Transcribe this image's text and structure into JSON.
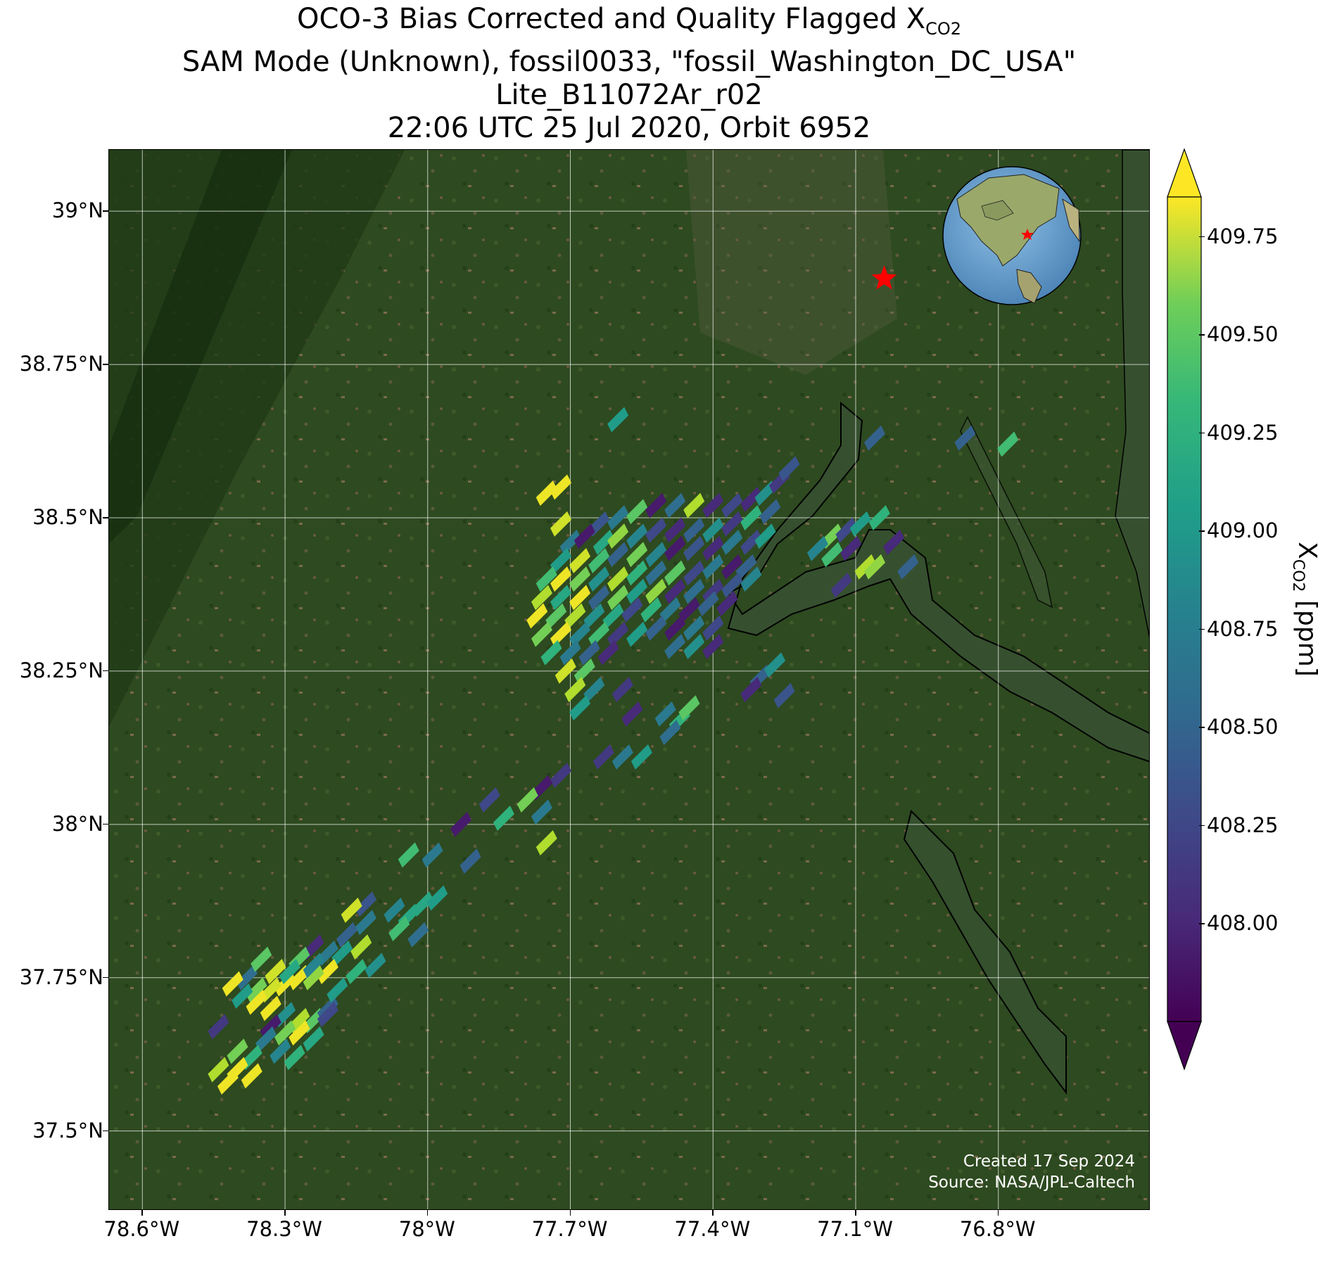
{
  "title": {
    "line1_prefix": "OCO-3 Bias Corrected and Quality Flagged X",
    "line1_sub": "CO2",
    "line2": "SAM Mode (Unknown), fossil0033, \"fossil_Washington_DC_USA\"",
    "line3": "Lite_B11072Ar_r02",
    "line4": "22:06 UTC 25 Jul 2020, Orbit 6952"
  },
  "credits": {
    "created": "Created 17 Sep 2024",
    "source": "Source: NASA/JPL-Caltech"
  },
  "map": {
    "lon_range": [
      -78.67,
      -76.48
    ],
    "lat_range": [
      37.37,
      39.1
    ],
    "lon_ticks": [
      {
        "value": -78.6,
        "label": "78.6°W"
      },
      {
        "value": -78.3,
        "label": "78.3°W"
      },
      {
        "value": -78.0,
        "label": "78°W"
      },
      {
        "value": -77.7,
        "label": "77.7°W"
      },
      {
        "value": -77.4,
        "label": "77.4°W"
      },
      {
        "value": -77.1,
        "label": "77.1°W"
      },
      {
        "value": -76.8,
        "label": "76.8°W"
      }
    ],
    "lat_ticks": [
      {
        "value": 39.0,
        "label": "39°N"
      },
      {
        "value": 38.75,
        "label": "38.75°N"
      },
      {
        "value": 38.5,
        "label": "38.5°N"
      },
      {
        "value": 38.25,
        "label": "38.25°N"
      },
      {
        "value": 38.0,
        "label": "38°N"
      },
      {
        "value": 37.75,
        "label": "37.75°N"
      },
      {
        "value": 37.5,
        "label": "37.5°N"
      }
    ],
    "target_marker": {
      "name": "fossil_Washington_DC_USA",
      "lon": -77.04,
      "lat": 38.89,
      "color": "#ff0000"
    },
    "colors": {
      "land": "#2f4a1f",
      "water": "#314a2e",
      "gridline": "#ffffff",
      "coastline": "#000000"
    }
  },
  "chart_data": {
    "type": "heatmap",
    "variable": "XCO2",
    "units": "ppm",
    "colorbar": {
      "label_prefix": "X",
      "label_sub": "CO2",
      "label_suffix": " [ppm]",
      "range": [
        407.75,
        409.85
      ],
      "extend": "both",
      "colormap": "viridis",
      "ticks": [
        {
          "value": 408.0,
          "label": "408.00"
        },
        {
          "value": 408.25,
          "label": "408.25"
        },
        {
          "value": 408.5,
          "label": "408.50"
        },
        {
          "value": 408.75,
          "label": "408.75"
        },
        {
          "value": 409.0,
          "label": "409.00"
        },
        {
          "value": 409.25,
          "label": "409.25"
        },
        {
          "value": 409.5,
          "label": "409.50"
        },
        {
          "value": 409.75,
          "label": "409.75"
        }
      ]
    },
    "soundings": [
      [
        -77.6,
        38.66,
        408.9
      ],
      [
        -77.06,
        38.63,
        408.4
      ],
      [
        -76.87,
        38.63,
        408.4
      ],
      [
        -76.78,
        38.62,
        409.2
      ],
      [
        -77.72,
        38.55,
        409.8
      ],
      [
        -77.75,
        38.54,
        409.8
      ],
      [
        -77.72,
        38.49,
        409.7
      ],
      [
        -77.64,
        38.49,
        408.3
      ],
      [
        -77.6,
        38.5,
        408.6
      ],
      [
        -77.56,
        38.51,
        409.3
      ],
      [
        -77.52,
        38.52,
        407.9
      ],
      [
        -77.48,
        38.52,
        408.5
      ],
      [
        -77.44,
        38.52,
        409.6
      ],
      [
        -77.4,
        38.52,
        408.0
      ],
      [
        -77.36,
        38.52,
        408.2
      ],
      [
        -77.32,
        38.53,
        408.0
      ],
      [
        -77.29,
        38.54,
        408.8
      ],
      [
        -77.26,
        38.56,
        408.1
      ],
      [
        -77.24,
        38.58,
        408.3
      ],
      [
        -77.7,
        38.46,
        408.6
      ],
      [
        -77.67,
        38.47,
        407.9
      ],
      [
        -77.63,
        38.46,
        409.0
      ],
      [
        -77.6,
        38.47,
        409.5
      ],
      [
        -77.56,
        38.47,
        408.7
      ],
      [
        -77.52,
        38.48,
        408.2
      ],
      [
        -77.48,
        38.48,
        408.0
      ],
      [
        -77.44,
        38.48,
        408.4
      ],
      [
        -77.4,
        38.48,
        408.8
      ],
      [
        -77.36,
        38.49,
        408.1
      ],
      [
        -77.32,
        38.5,
        409.1
      ],
      [
        -77.28,
        38.51,
        408.4
      ],
      [
        -77.72,
        38.43,
        408.9
      ],
      [
        -77.68,
        38.43,
        409.7
      ],
      [
        -77.64,
        38.43,
        409.2
      ],
      [
        -77.6,
        38.44,
        408.4
      ],
      [
        -77.56,
        38.44,
        409.4
      ],
      [
        -77.52,
        38.44,
        408.7
      ],
      [
        -77.48,
        38.45,
        407.9
      ],
      [
        -77.44,
        38.45,
        408.3
      ],
      [
        -77.4,
        38.45,
        408.0
      ],
      [
        -77.36,
        38.46,
        408.6
      ],
      [
        -77.32,
        38.46,
        408.2
      ],
      [
        -77.29,
        38.47,
        408.9
      ],
      [
        -77.75,
        38.4,
        409.2
      ],
      [
        -77.72,
        38.4,
        409.8
      ],
      [
        -77.68,
        38.4,
        409.4
      ],
      [
        -77.64,
        38.4,
        408.8
      ],
      [
        -77.6,
        38.4,
        409.6
      ],
      [
        -77.56,
        38.41,
        409.1
      ],
      [
        -77.52,
        38.41,
        408.5
      ],
      [
        -77.48,
        38.41,
        409.3
      ],
      [
        -77.44,
        38.41,
        408.2
      ],
      [
        -77.4,
        38.42,
        408.6
      ],
      [
        -77.36,
        38.42,
        407.9
      ],
      [
        -77.33,
        38.42,
        408.4
      ],
      [
        -77.76,
        38.37,
        409.6
      ],
      [
        -77.72,
        38.37,
        409.0
      ],
      [
        -77.68,
        38.37,
        409.8
      ],
      [
        -77.64,
        38.37,
        408.4
      ],
      [
        -77.6,
        38.37,
        409.4
      ],
      [
        -77.56,
        38.38,
        408.9
      ],
      [
        -77.52,
        38.38,
        409.5
      ],
      [
        -77.48,
        38.38,
        408.0
      ],
      [
        -77.44,
        38.38,
        408.5
      ],
      [
        -77.4,
        38.38,
        408.1
      ],
      [
        -77.36,
        38.39,
        408.3
      ],
      [
        -77.32,
        38.4,
        408.7
      ],
      [
        -77.77,
        38.34,
        409.8
      ],
      [
        -77.73,
        38.34,
        409.3
      ],
      [
        -77.69,
        38.34,
        409.6
      ],
      [
        -77.65,
        38.34,
        408.8
      ],
      [
        -77.61,
        38.34,
        409.0
      ],
      [
        -77.57,
        38.35,
        408.2
      ],
      [
        -77.53,
        38.35,
        409.1
      ],
      [
        -77.49,
        38.35,
        408.6
      ],
      [
        -77.45,
        38.35,
        407.9
      ],
      [
        -77.41,
        38.36,
        408.4
      ],
      [
        -77.37,
        38.36,
        408.0
      ],
      [
        -77.76,
        38.31,
        409.4
      ],
      [
        -77.72,
        38.31,
        409.8
      ],
      [
        -77.68,
        38.31,
        408.7
      ],
      [
        -77.64,
        38.31,
        409.2
      ],
      [
        -77.6,
        38.31,
        408.1
      ],
      [
        -77.56,
        38.31,
        408.9
      ],
      [
        -77.52,
        38.32,
        408.4
      ],
      [
        -77.48,
        38.32,
        407.9
      ],
      [
        -77.44,
        38.32,
        408.6
      ],
      [
        -77.4,
        38.32,
        408.2
      ],
      [
        -77.74,
        38.28,
        409.1
      ],
      [
        -77.7,
        38.28,
        408.6
      ],
      [
        -77.66,
        38.28,
        408.4
      ],
      [
        -77.62,
        38.28,
        408.0
      ],
      [
        -77.48,
        38.29,
        408.5
      ],
      [
        -77.44,
        38.29,
        408.8
      ],
      [
        -77.4,
        38.29,
        408.0
      ],
      [
        -77.71,
        38.25,
        409.7
      ],
      [
        -77.67,
        38.25,
        409.3
      ],
      [
        -77.69,
        38.22,
        409.6
      ],
      [
        -77.65,
        38.22,
        408.7
      ],
      [
        -77.68,
        38.19,
        408.9
      ],
      [
        -77.59,
        38.22,
        408.1
      ],
      [
        -77.57,
        38.18,
        408.0
      ],
      [
        -77.3,
        38.24,
        408.4
      ],
      [
        -77.27,
        38.26,
        408.8
      ],
      [
        -77.32,
        38.22,
        408.0
      ],
      [
        -77.25,
        38.21,
        408.3
      ],
      [
        -77.5,
        38.18,
        408.6
      ],
      [
        -77.47,
        38.17,
        409.1
      ],
      [
        -77.45,
        38.19,
        409.3
      ],
      [
        -77.49,
        38.15,
        408.5
      ],
      [
        -77.63,
        38.11,
        408.1
      ],
      [
        -77.59,
        38.11,
        408.6
      ],
      [
        -77.55,
        38.11,
        408.9
      ],
      [
        -77.15,
        38.47,
        409.4
      ],
      [
        -77.12,
        38.48,
        408.2
      ],
      [
        -77.09,
        38.49,
        408.9
      ],
      [
        -77.05,
        38.5,
        409.1
      ],
      [
        -77.18,
        38.45,
        408.7
      ],
      [
        -77.15,
        38.44,
        409.2
      ],
      [
        -77.11,
        38.45,
        408.0
      ],
      [
        -77.08,
        38.42,
        409.6
      ],
      [
        -77.02,
        38.46,
        408.0
      ],
      [
        -77.13,
        38.39,
        408.1
      ],
      [
        -77.06,
        38.42,
        409.5
      ],
      [
        -76.99,
        38.42,
        408.4
      ],
      [
        -77.72,
        38.08,
        408.1
      ],
      [
        -77.76,
        38.06,
        407.9
      ],
      [
        -77.79,
        38.04,
        409.4
      ],
      [
        -77.84,
        38.01,
        409.1
      ],
      [
        -77.76,
        38.02,
        408.6
      ],
      [
        -77.87,
        38.04,
        408.2
      ],
      [
        -77.93,
        38.0,
        407.9
      ],
      [
        -77.75,
        37.97,
        409.6
      ],
      [
        -78.04,
        37.95,
        409.2
      ],
      [
        -77.99,
        37.95,
        408.6
      ],
      [
        -77.91,
        37.94,
        408.4
      ],
      [
        -78.07,
        37.86,
        408.7
      ],
      [
        -78.04,
        37.85,
        409.0
      ],
      [
        -78.01,
        37.87,
        409.0
      ],
      [
        -77.98,
        37.88,
        408.9
      ],
      [
        -78.06,
        37.83,
        409.2
      ],
      [
        -78.02,
        37.82,
        408.5
      ],
      [
        -78.13,
        37.87,
        408.3
      ],
      [
        -78.16,
        37.86,
        409.7
      ],
      [
        -78.13,
        37.84,
        408.6
      ],
      [
        -78.17,
        37.82,
        408.4
      ],
      [
        -78.14,
        37.8,
        409.6
      ],
      [
        -78.18,
        37.79,
        408.9
      ],
      [
        -78.21,
        37.79,
        408.6
      ],
      [
        -78.24,
        37.8,
        408.0
      ],
      [
        -78.27,
        37.78,
        409.3
      ],
      [
        -78.21,
        37.76,
        409.8
      ],
      [
        -78.24,
        37.75,
        409.5
      ],
      [
        -78.27,
        37.75,
        409.8
      ],
      [
        -78.3,
        37.74,
        409.8
      ],
      [
        -78.33,
        37.73,
        409.7
      ],
      [
        -78.36,
        37.73,
        409.4
      ],
      [
        -78.38,
        37.75,
        408.5
      ],
      [
        -78.41,
        37.74,
        409.8
      ],
      [
        -78.39,
        37.72,
        408.9
      ],
      [
        -78.36,
        37.71,
        409.8
      ],
      [
        -78.33,
        37.7,
        409.8
      ],
      [
        -78.3,
        37.69,
        408.8
      ],
      [
        -78.27,
        37.68,
        409.6
      ],
      [
        -78.24,
        37.68,
        409.3
      ],
      [
        -78.21,
        37.7,
        408.4
      ],
      [
        -78.33,
        37.67,
        407.9
      ],
      [
        -78.3,
        37.66,
        409.4
      ],
      [
        -78.27,
        37.66,
        409.8
      ],
      [
        -78.24,
        37.65,
        409.0
      ],
      [
        -78.31,
        37.63,
        408.7
      ],
      [
        -78.28,
        37.62,
        409.1
      ],
      [
        -78.34,
        37.65,
        408.6
      ],
      [
        -78.35,
        37.78,
        409.3
      ],
      [
        -78.32,
        37.76,
        409.7
      ],
      [
        -78.29,
        37.76,
        409.0
      ],
      [
        -78.24,
        37.77,
        408.7
      ],
      [
        -78.44,
        37.67,
        408.1
      ],
      [
        -78.4,
        37.63,
        409.4
      ],
      [
        -78.37,
        37.62,
        409.1
      ],
      [
        -78.4,
        37.6,
        409.8
      ],
      [
        -78.37,
        37.59,
        409.8
      ],
      [
        -78.44,
        37.6,
        409.6
      ],
      [
        -78.42,
        37.58,
        409.8
      ],
      [
        -78.19,
        37.73,
        408.9
      ],
      [
        -78.21,
        37.69,
        408.2
      ],
      [
        -78.15,
        37.76,
        409.1
      ],
      [
        -78.11,
        37.77,
        408.8
      ]
    ]
  }
}
